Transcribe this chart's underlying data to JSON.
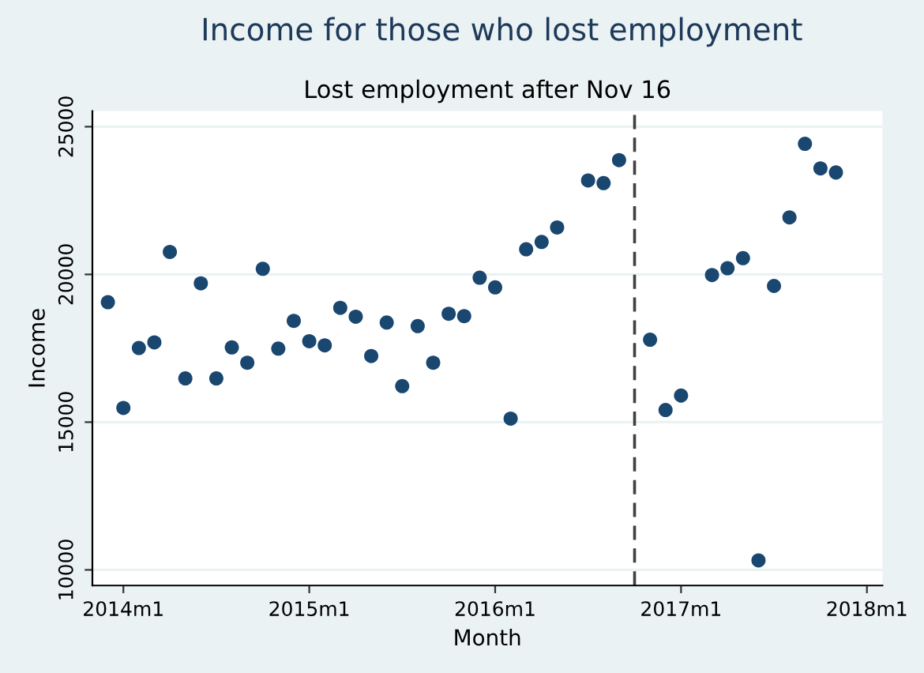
{
  "chart_data": {
    "type": "scatter",
    "title": "Income for those who lost employment",
    "subtitle": "Lost employment after Nov 16",
    "xlabel": "Month",
    "ylabel": "Income",
    "x": [
      "2013-12",
      "2014-01",
      "2014-02",
      "2014-03",
      "2014-04",
      "2014-05",
      "2014-06",
      "2014-07",
      "2014-08",
      "2014-09",
      "2014-10",
      "2014-11",
      "2014-12",
      "2015-01",
      "2015-02",
      "2015-03",
      "2015-04",
      "2015-05",
      "2015-06",
      "2015-07",
      "2015-08",
      "2015-09",
      "2015-10",
      "2015-11",
      "2015-12",
      "2016-01",
      "2016-02",
      "2016-03",
      "2016-04",
      "2016-05",
      "2016-07",
      "2016-08",
      "2016-09",
      "2016-11",
      "2016-12",
      "2017-01",
      "2017-03",
      "2017-04",
      "2017-05",
      "2017-06",
      "2017-07",
      "2017-08",
      "2017-09",
      "2017-10",
      "2017-11"
    ],
    "series": [
      {
        "color": "#1a476f",
        "values": [
          19060,
          15480,
          17510,
          17700,
          20760,
          16480,
          19700,
          16480,
          17530,
          17010,
          20190,
          17490,
          18430,
          17740,
          17600,
          18870,
          18570,
          17240,
          18370,
          16220,
          18250,
          17010,
          18670,
          18590,
          19890,
          19560,
          15120,
          20850,
          21100,
          21590,
          23180,
          23090,
          23870,
          17790,
          15410,
          15900,
          19980,
          20210,
          20550,
          10320,
          19610,
          21930,
          24420,
          23590,
          23450
        ]
      }
    ],
    "xlim": [
      "2013-11",
      "2018-02"
    ],
    "ylim": [
      9470,
      25530
    ],
    "xticks": [
      {
        "value": "2014-01",
        "label": "2014m1"
      },
      {
        "value": "2015-01",
        "label": "2015m1"
      },
      {
        "value": "2016-01",
        "label": "2016m1"
      },
      {
        "value": "2017-01",
        "label": "2017m1"
      },
      {
        "value": "2018-01",
        "label": "2018m1"
      }
    ],
    "yticks": [
      10000,
      15000,
      20000,
      25000
    ],
    "ref_lines": [
      {
        "axis": "x",
        "value": "2016-10",
        "color": "#404040",
        "line_style": "dashed"
      }
    ],
    "grid": "y",
    "marker": "circle"
  }
}
